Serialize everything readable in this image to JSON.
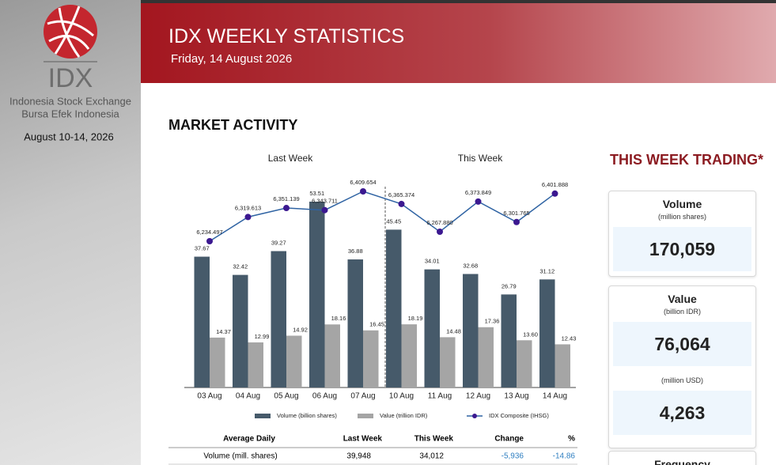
{
  "sidebar": {
    "logo": "IDX",
    "lines": [
      "Indonesia Stock Exchange",
      "Bursa  Efek  Indonesia"
    ],
    "period": "August 10-14, 2026"
  },
  "header": {
    "title": "IDX WEEKLY STATISTICS",
    "date": "Friday, 14 August 2026"
  },
  "section_title": "MARKET ACTIVITY",
  "chart_data": {
    "type": "bar",
    "groups": [
      "Last Week",
      "This Week"
    ],
    "categories": [
      "03 Aug",
      "04 Aug",
      "05 Aug",
      "06 Aug",
      "07 Aug",
      "10 Aug",
      "11 Aug",
      "12 Aug",
      "13 Aug",
      "14 Aug"
    ],
    "series": [
      {
        "name": "Volume (billion shares)",
        "color": "#465a6a",
        "values": [
          37.67,
          32.42,
          39.27,
          53.51,
          36.88,
          45.45,
          34.01,
          32.68,
          26.79,
          31.12
        ]
      },
      {
        "name": "Value (trillion IDR)",
        "color": "#a5a5a5",
        "values": [
          14.37,
          12.99,
          14.92,
          18.16,
          16.45,
          18.19,
          14.48,
          17.36,
          13.6,
          12.43
        ],
        "value_labels": [
          "14.37",
          "12.99",
          "14.92",
          "18.16",
          "16.45",
          "18.19",
          "14.48",
          "17.36",
          "13.60",
          "12.43"
        ]
      },
      {
        "name": "IDX Composite (IHSG)",
        "type": "line",
        "axis": "y2",
        "color": "#2f63a3",
        "marker_color": "#3b1890",
        "values": [
          6234.497,
          6319.613,
          6351.139,
          6343.711,
          6409.654,
          6365.374,
          6267.88,
          6373.849,
          6301.765,
          6401.888
        ],
        "value_labels": [
          "6,234.497",
          "6,319.613",
          "6,351.139",
          "6,343.711",
          "6,409.654",
          "6,365.374",
          "6,267.880",
          "6,373.849",
          "6,301.765",
          "6,401.888"
        ]
      }
    ]
  },
  "table": {
    "header": [
      "Average Daily",
      "Last Week",
      "This Week",
      "Change",
      "%"
    ],
    "rows": [
      [
        "Volume (mill. shares)",
        "39,948",
        "34,012",
        "-5,936",
        "-14.86"
      ]
    ]
  },
  "trading": {
    "title": "THIS WEEK TRADING*",
    "cards": [
      {
        "label": "Volume",
        "items": [
          {
            "unit": "(million shares)",
            "value": "170,059"
          }
        ]
      },
      {
        "label": "Value",
        "items": [
          {
            "unit": "(billion IDR)",
            "value": "76,064"
          },
          {
            "unit": "(million USD)",
            "value": "4,263"
          }
        ]
      },
      {
        "label": "Frequency"
      }
    ]
  }
}
